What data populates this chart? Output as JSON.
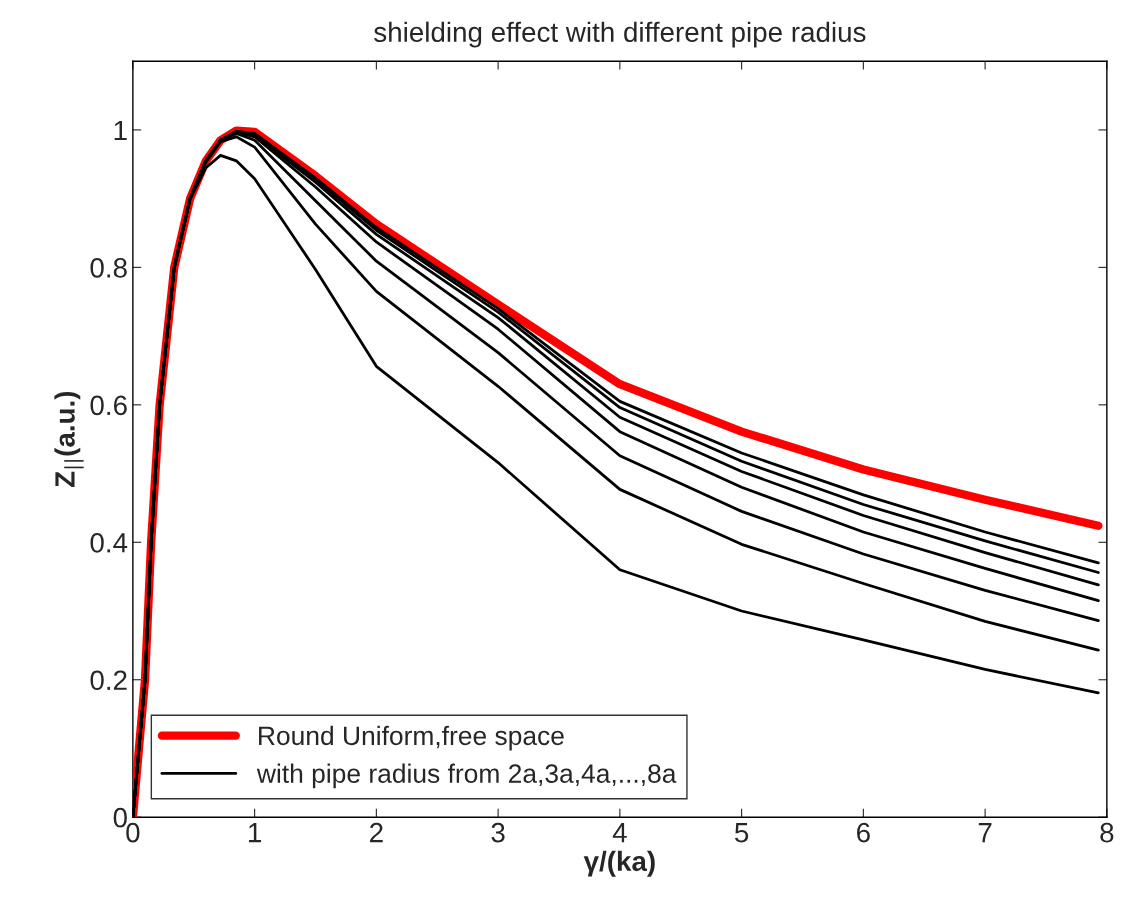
{
  "chart_data": {
    "type": "line",
    "title": "shielding effect with different pipe radius",
    "xlabel": "γ/(ka)",
    "ylabel": "Z$_{||}$(a.u.)",
    "x": [
      0,
      0.05,
      0.1,
      0.15,
      0.22,
      0.34,
      0.47,
      0.6,
      0.72,
      0.85,
      1,
      1.5,
      2,
      3,
      4,
      5,
      6,
      7,
      7.93
    ],
    "xlim": [
      0,
      8
    ],
    "ylim": [
      0,
      1.1
    ],
    "xticks": [
      0,
      1,
      2,
      3,
      4,
      5,
      6,
      7,
      8
    ],
    "yticks": [
      0,
      0.2,
      0.4,
      0.6,
      0.8,
      1
    ],
    "grid": false,
    "legend": "bottom left",
    "line_style": "solid",
    "marker": "none",
    "series": [
      {
        "name": "Round Uniform,free space",
        "color": "#ff0000",
        "values": [
          0,
          0.1,
          0.2,
          0.4,
          0.6,
          0.8,
          0.9,
          0.955,
          0.985,
          0.999,
          0.997,
          0.933,
          0.863,
          0.746,
          0.63,
          0.561,
          0.506,
          0.462,
          0.424
        ]
      },
      {
        "name": "with pipe radius from 2a,3a,4a,...,8a",
        "color": "#000000",
        "values": [
          0,
          0.1,
          0.2,
          0.4,
          0.6,
          0.8,
          0.9,
          0.955,
          0.985,
          0.998,
          0.995,
          0.93,
          0.858,
          0.74,
          0.605,
          0.53,
          0.469,
          0.415,
          0.37
        ]
      },
      {
        "color": "#000000",
        "values": [
          0,
          0.1,
          0.2,
          0.4,
          0.6,
          0.8,
          0.9,
          0.955,
          0.985,
          0.998,
          0.994,
          0.928,
          0.854,
          0.735,
          0.596,
          0.518,
          0.455,
          0.402,
          0.356
        ]
      },
      {
        "color": "#000000",
        "values": [
          0,
          0.1,
          0.2,
          0.4,
          0.6,
          0.8,
          0.9,
          0.955,
          0.985,
          0.997,
          0.992,
          0.924,
          0.848,
          0.727,
          0.582,
          0.503,
          0.439,
          0.385,
          0.338
        ]
      },
      {
        "color": "#000000",
        "values": [
          0,
          0.1,
          0.2,
          0.4,
          0.6,
          0.8,
          0.9,
          0.955,
          0.985,
          0.997,
          0.99,
          0.917,
          0.837,
          0.71,
          0.561,
          0.48,
          0.415,
          0.362,
          0.315
        ]
      },
      {
        "color": "#000000",
        "values": [
          0,
          0.1,
          0.2,
          0.4,
          0.6,
          0.8,
          0.9,
          0.955,
          0.984,
          0.995,
          0.985,
          0.897,
          0.809,
          0.676,
          0.526,
          0.445,
          0.383,
          0.33,
          0.286
        ]
      },
      {
        "color": "#000000",
        "values": [
          0,
          0.1,
          0.2,
          0.4,
          0.6,
          0.8,
          0.9,
          0.953,
          0.983,
          0.99,
          0.975,
          0.863,
          0.765,
          0.627,
          0.477,
          0.397,
          0.34,
          0.285,
          0.243
        ]
      },
      {
        "color": "#000000",
        "values": [
          0,
          0.1,
          0.2,
          0.4,
          0.6,
          0.8,
          0.9,
          0.945,
          0.963,
          0.955,
          0.929,
          0.797,
          0.656,
          0.516,
          0.36,
          0.3,
          0.258,
          0.215,
          0.181
        ]
      }
    ]
  }
}
